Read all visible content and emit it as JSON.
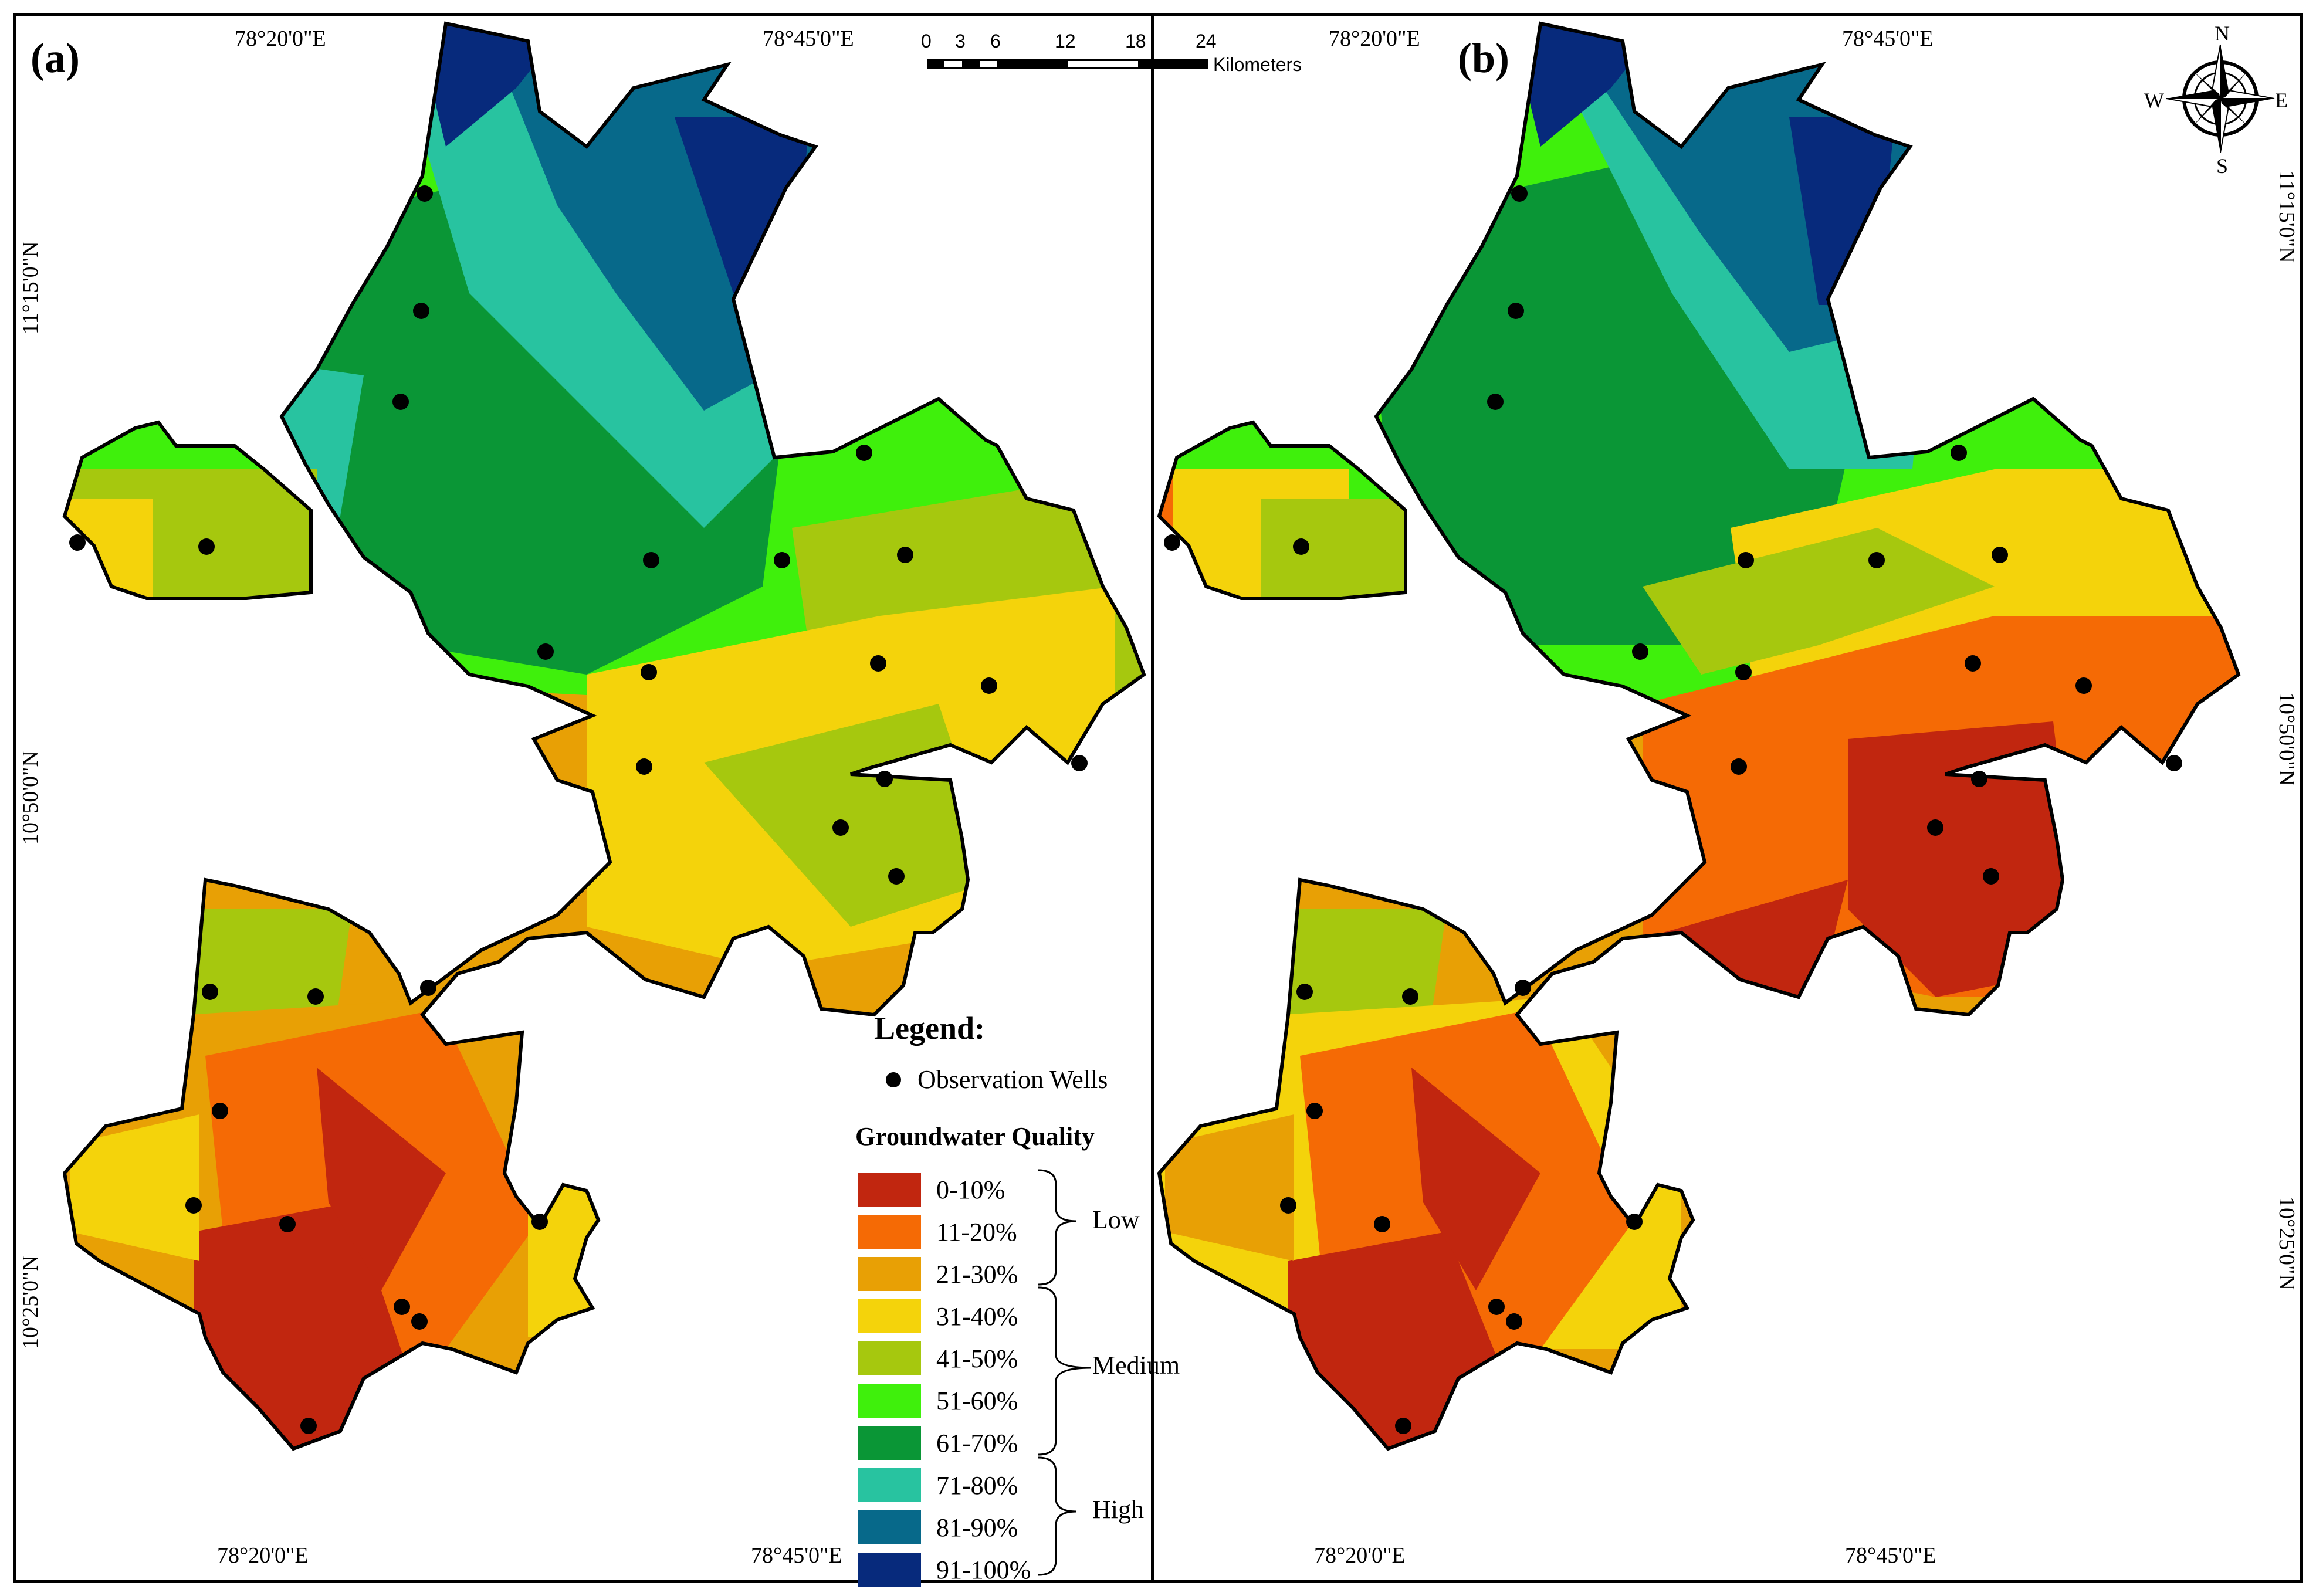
{
  "panels": [
    {
      "label": "(a)"
    },
    {
      "label": "(b)"
    }
  ],
  "coordinates": {
    "lon_left": "78°20'0\"E",
    "lon_right": "78°45'0\"E",
    "lat_top": "11°15'0\"N",
    "lat_mid": "10°50'0\"N",
    "lat_bottom": "10°25'0\"N"
  },
  "scale_bar": {
    "ticks": [
      "0",
      "3",
      "6",
      "12",
      "18",
      "24"
    ],
    "unit": "Kilometers"
  },
  "compass": {
    "n": "N",
    "s": "S",
    "e": "E",
    "w": "W"
  },
  "legend": {
    "title": "Legend:",
    "wells_label": "Observation Wells",
    "quality_title": "Groundwater Quality",
    "classes": [
      {
        "label": "0-10%",
        "color": "#c1260f"
      },
      {
        "label": "11-20%",
        "color": "#f56a05"
      },
      {
        "label": "21-30%",
        "color": "#e8a005"
      },
      {
        "label": "31-40%",
        "color": "#f4d30b"
      },
      {
        "label": "41-50%",
        "color": "#a6c80e"
      },
      {
        "label": "51-60%",
        "color": "#3ff00c"
      },
      {
        "label": "61-70%",
        "color": "#0a9636"
      },
      {
        "label": "71-80%",
        "color": "#28c3a0"
      },
      {
        "label": "81-90%",
        "color": "#07698a"
      },
      {
        "label": "91-100%",
        "color": "#072a7c"
      }
    ],
    "groups": [
      {
        "label": "Low"
      },
      {
        "label": "Medium"
      },
      {
        "label": "High"
      }
    ]
  }
}
